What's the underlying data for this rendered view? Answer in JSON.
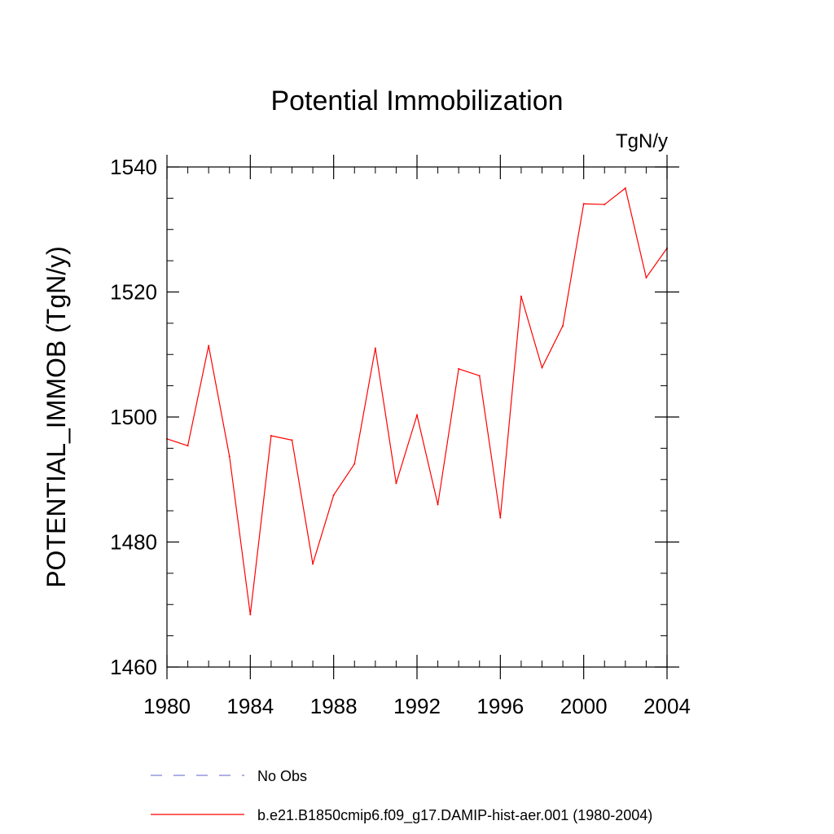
{
  "chart_data": {
    "type": "line",
    "title": "Potential Immobilization",
    "units_label": "TgN/y",
    "ylabel": "POTENTIAL_IMMOB  (TgN/y)",
    "xlabel": "",
    "xlim": [
      1980,
      2004
    ],
    "ylim": [
      1460,
      1540
    ],
    "x_ticks": [
      1980,
      1984,
      1988,
      1992,
      1996,
      2000,
      2004
    ],
    "x_tick_labels": [
      "1980",
      "1984",
      "1988",
      "1992",
      "1996",
      "2000",
      "2004"
    ],
    "x_minor_step": 1,
    "y_ticks": [
      1460,
      1480,
      1500,
      1520,
      1540
    ],
    "y_tick_labels": [
      "1460",
      "1480",
      "1500",
      "1520",
      "1540"
    ],
    "y_minor_step": 5,
    "grid": false,
    "legend_position": "bottom",
    "series": [
      {
        "name": "No Obs",
        "color": "#7f7fd8",
        "style": "dashed",
        "x": [],
        "y": []
      },
      {
        "name": "b.e21.B1850cmip6.f09_g17.DAMIP-hist-aer.001 (1980-2004)",
        "color": "#ff0000",
        "style": "solid",
        "x": [
          1980,
          1981,
          1982,
          1983,
          1984,
          1985,
          1986,
          1987,
          1988,
          1989,
          1990,
          1991,
          1992,
          1993,
          1994,
          1995,
          1996,
          1997,
          1998,
          1999,
          2000,
          2001,
          2002,
          2003,
          2004
        ],
        "y": [
          1496.5,
          1495.4,
          1511.4,
          1493.7,
          1468.4,
          1497.0,
          1496.3,
          1476.5,
          1487.5,
          1492.5,
          1511.0,
          1489.4,
          1500.3,
          1486.0,
          1507.7,
          1506.6,
          1483.9,
          1519.3,
          1507.9,
          1514.6,
          1534.1,
          1534.0,
          1536.6,
          1522.3,
          1527.0
        ]
      }
    ]
  }
}
